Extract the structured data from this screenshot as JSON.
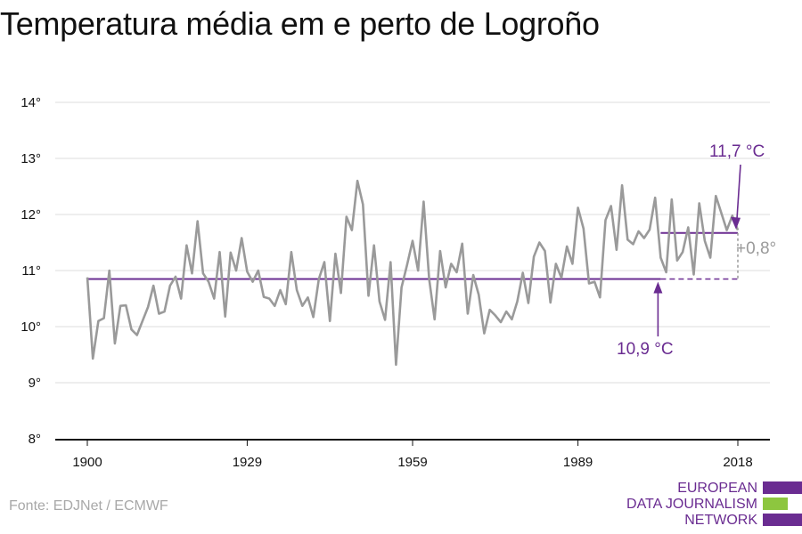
{
  "title": "Temperatura média em e perto de Logroño",
  "source": "Fonte: EDJNet / ECMWF",
  "logo": {
    "lines": [
      "EUROPEAN",
      "DATA JOURNALISM",
      "NETWORK"
    ],
    "colors": [
      "#6a2c91",
      "#8dc63f",
      "#6a2c91"
    ]
  },
  "colors": {
    "series": "#9a9a9a",
    "baseline": "#6a2c91",
    "annotation_purple": "#6a2c91",
    "annotation_gray": "#9a9a9a",
    "grid": "#dddddd"
  },
  "chart_data": {
    "type": "line",
    "title": "Temperatura média em e perto de Logroño",
    "xlim": [
      1900,
      2018
    ],
    "ylim": [
      8,
      14
    ],
    "x_ticks": [
      1900,
      1929,
      1959,
      1989,
      2018
    ],
    "y_ticks": [
      8,
      9,
      10,
      11,
      12,
      13,
      14
    ],
    "y_tick_labels": [
      "8°",
      "9°",
      "10°",
      "11°",
      "12°",
      "13°",
      "14°"
    ],
    "grid": true,
    "series": [
      {
        "x": [
          1900,
          1901,
          1902,
          1903,
          1904,
          1905,
          1906,
          1907,
          1908,
          1909,
          1910,
          1911,
          1912,
          1913,
          1914,
          1915,
          1916,
          1917,
          1918,
          1919,
          1920,
          1921,
          1922,
          1923,
          1924,
          1925,
          1926,
          1927,
          1928,
          1929,
          1930,
          1931,
          1932,
          1933,
          1934,
          1935,
          1936,
          1937,
          1938,
          1939,
          1940,
          1941,
          1942,
          1943,
          1944,
          1945,
          1946,
          1947,
          1948,
          1949,
          1950,
          1951,
          1952,
          1953,
          1954,
          1955,
          1956,
          1957,
          1958,
          1959,
          1960,
          1961,
          1962,
          1963,
          1964,
          1965,
          1966,
          1967,
          1968,
          1969,
          1970,
          1971,
          1972,
          1973,
          1974,
          1975,
          1976,
          1977,
          1978,
          1979,
          1980,
          1981,
          1982,
          1983,
          1984,
          1985,
          1986,
          1987,
          1988,
          1989,
          1990,
          1991,
          1992,
          1993,
          1994,
          1995,
          1996,
          1997,
          1998,
          1999,
          2000,
          2001,
          2002,
          2003,
          2004,
          2005,
          2006,
          2007,
          2008,
          2009,
          2010,
          2011,
          2012,
          2013,
          2014,
          2015,
          2016,
          2017,
          2018
        ],
        "values": [
          10.88,
          9.43,
          10.1,
          10.15,
          11.0,
          9.7,
          10.37,
          10.38,
          9.95,
          9.85,
          10.1,
          10.35,
          10.73,
          10.23,
          10.27,
          10.73,
          10.89,
          10.5,
          11.45,
          10.95,
          11.88,
          10.95,
          10.8,
          10.5,
          11.33,
          10.18,
          11.32,
          11.0,
          11.58,
          10.98,
          10.8,
          11.0,
          10.53,
          10.5,
          10.37,
          10.65,
          10.4,
          11.33,
          10.65,
          10.37,
          10.52,
          10.17,
          10.85,
          11.15,
          10.1,
          11.3,
          10.6,
          11.96,
          11.72,
          12.6,
          12.18,
          10.55,
          11.45,
          10.45,
          10.12,
          11.15,
          9.32,
          10.7,
          11.1,
          11.53,
          11.0,
          12.23,
          10.85,
          10.13,
          11.35,
          10.7,
          11.12,
          10.97,
          11.48,
          10.23,
          10.92,
          10.57,
          9.88,
          10.3,
          10.2,
          10.08,
          10.27,
          10.13,
          10.45,
          10.96,
          10.42,
          11.25,
          11.5,
          11.35,
          10.43,
          11.12,
          10.87,
          11.43,
          11.12,
          12.12,
          11.75,
          10.77,
          10.8,
          10.52,
          11.9,
          12.15,
          11.37,
          12.52,
          11.55,
          11.47,
          11.7,
          11.58,
          11.73,
          12.3,
          11.23,
          10.97,
          12.27,
          11.18,
          11.33,
          11.77,
          10.93,
          12.2,
          11.53,
          11.23,
          12.33,
          12.03,
          11.72,
          11.98,
          11.72
        ]
      }
    ],
    "baseline_early": {
      "value": 10.85,
      "x_range": [
        1900,
        2018
      ],
      "solid_until": 2004
    },
    "baseline_recent": {
      "value": 11.67,
      "x_range": [
        2004,
        2018
      ]
    },
    "annotations": {
      "early_avg": "10,9 °C",
      "recent_avg": "11,7 °C",
      "difference": "+0,8°"
    }
  }
}
